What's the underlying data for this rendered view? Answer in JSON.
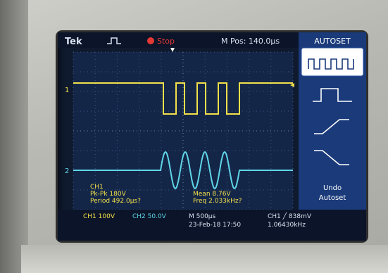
{
  "topbar": {
    "brand": "Tek",
    "trigger_state": "Stop",
    "m_pos": "M Pos: 140.0µs"
  },
  "side_menu": {
    "title": "AUTOSET",
    "buttons": [
      "multi-cycle-icon",
      "single-cycle-icon",
      "rising-edge-icon",
      "falling-edge-icon"
    ],
    "undo_line1": "Undo",
    "undo_line2": "Autoset"
  },
  "measurements": {
    "channel": "CH1",
    "pk_pk": "Pk-Pk 180V",
    "period": "Period 492.0µs?",
    "mean": "Mean 8.76V",
    "freq": "Freq 2.033kHz?"
  },
  "status_bar": {
    "ch1_scale": "CH1  100V",
    "ch2_scale": "CH2  50.0V",
    "timebase": "M 500µs",
    "datetime": "23-Feb-18 17:50",
    "trigger": "CH1 ╱  838mV",
    "trig_freq": "1.06430kHz"
  },
  "markers": {
    "ch1_label": "1",
    "ch2_label": "2"
  },
  "colors": {
    "ch1": "#f2e04a",
    "ch2": "#5fd6e8",
    "screen": "#0f1a2e",
    "stop": "#e53935"
  }
}
